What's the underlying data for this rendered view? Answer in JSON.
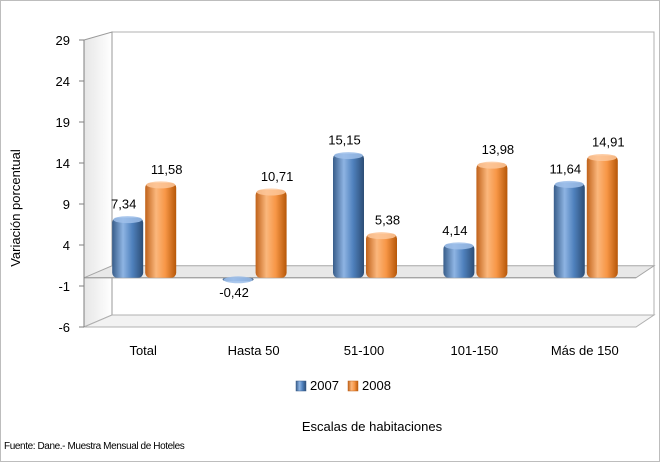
{
  "chart_data": {
    "type": "bar",
    "categories": [
      "Total",
      "Hasta 50",
      "51-100",
      "101-150",
      "Más de 150"
    ],
    "series": [
      {
        "name": "2007",
        "values": [
          7.34,
          -0.42,
          15.15,
          4.14,
          11.64
        ],
        "labels": [
          "7,34",
          "-0,42",
          "15,15",
          "4,14",
          "11,64"
        ]
      },
      {
        "name": "2008",
        "values": [
          11.58,
          10.71,
          5.38,
          13.98,
          14.91
        ],
        "labels": [
          "11,58",
          "10,71",
          "5,38",
          "13,98",
          "14,91"
        ]
      }
    ],
    "yticks": [
      "29",
      "24",
      "19",
      "14",
      "9",
      "4",
      "-1",
      "-6"
    ],
    "ytick_values": [
      29,
      24,
      19,
      14,
      9,
      4,
      -1,
      -6
    ],
    "ylim": [
      -6,
      29
    ],
    "ylabel": "Variación porcentual",
    "xlabel": "Escalas de habitaciones",
    "source": "Fuente: Dane.- Muestra Mensual de Hoteles",
    "colors": {
      "2007": "#4f81bd",
      "2008": "#f79646"
    },
    "grid": false,
    "legend_position": "bottom"
  }
}
